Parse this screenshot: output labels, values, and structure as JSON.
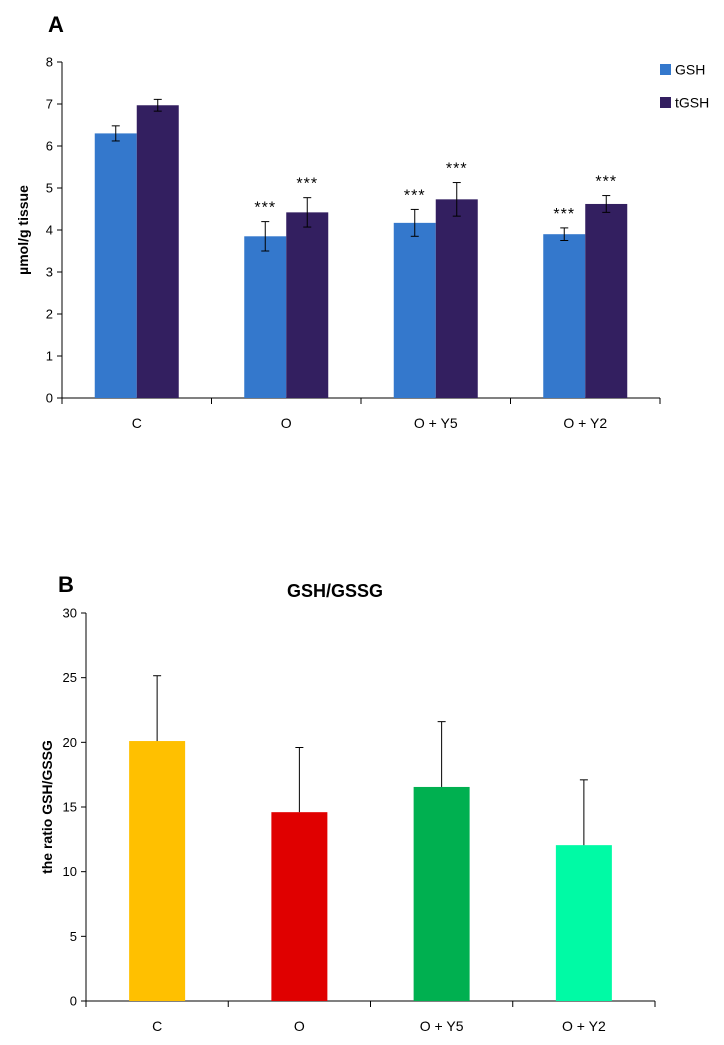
{
  "chart_data": [
    {
      "panel": "A",
      "type": "bar",
      "title": "",
      "xlabel": "",
      "ylabel": "µmol/g tissue",
      "ylim": [
        0,
        8
      ],
      "ytick_step": 1,
      "categories": [
        "C",
        "O",
        "O + Y5",
        "O + Y2"
      ],
      "legend_position": "top-right",
      "series": [
        {
          "name": "GSH",
          "color": "#3478CC",
          "values": [
            6.3,
            3.85,
            4.17,
            3.9
          ],
          "errors": [
            0.18,
            0.35,
            0.32,
            0.15
          ]
        },
        {
          "name": "tGSH",
          "color": "#331F60",
          "values": [
            6.97,
            4.42,
            4.73,
            4.62
          ],
          "errors": [
            0.14,
            0.35,
            0.4,
            0.2
          ]
        }
      ],
      "annotations": [
        {
          "series": "GSH",
          "category": "O",
          "text": "***"
        },
        {
          "series": "tGSH",
          "category": "O",
          "text": "***"
        },
        {
          "series": "GSH",
          "category": "O + Y5",
          "text": "***"
        },
        {
          "series": "tGSH",
          "category": "O + Y5",
          "text": "***"
        },
        {
          "series": "GSH",
          "category": "O + Y2",
          "text": "***"
        },
        {
          "series": "tGSH",
          "category": "O + Y2",
          "text": "***"
        }
      ]
    },
    {
      "panel": "B",
      "type": "bar",
      "title": "GSH/GSSG",
      "xlabel": "",
      "ylabel": "the ratio GSH/GSSG",
      "ylim": [
        0,
        30
      ],
      "ytick_step": 5,
      "categories": [
        "C",
        "O",
        "O + Y5",
        "O + Y2"
      ],
      "values": [
        20.1,
        14.6,
        16.55,
        12.05
      ],
      "errors": [
        5.05,
        5.0,
        5.05,
        5.05
      ],
      "colors": [
        "#FFC000",
        "#E00000",
        "#00B050",
        "#00FAA5"
      ]
    }
  ]
}
